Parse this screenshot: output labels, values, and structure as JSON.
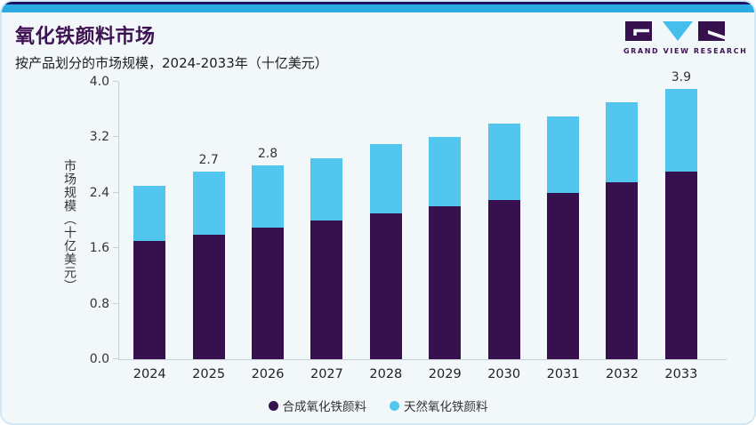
{
  "header": {
    "title": "氧化铁颜料市场",
    "subtitle": "按产品划分的市场规模，2024-2033年（十亿美元）"
  },
  "logo": {
    "text": "GRAND VIEW RESEARCH"
  },
  "colors": {
    "background": "#F2F7FA",
    "accent_bar": "#2AACE3",
    "accent_bar_top": "#1B1464",
    "brand_purple": "#3E1253",
    "synthetic_purple": "#36114D",
    "natural_blue": "#53C6F0"
  },
  "chart_data": {
    "type": "bar",
    "stacked": true,
    "title": "氧化铁颜料市场",
    "subtitle": "按产品划分的市场规模，2024-2033年（十亿美元）",
    "xlabel": "",
    "ylabel": "市场规模（十亿美元）",
    "ylim": [
      0,
      4.0
    ],
    "yticks": [
      "0.0",
      "0.8",
      "1.6",
      "2.4",
      "3.2",
      "4.0"
    ],
    "grid": false,
    "legend_position": "bottom",
    "categories": [
      "2024",
      "2025",
      "2026",
      "2027",
      "2028",
      "2029",
      "2030",
      "2031",
      "2032",
      "2033"
    ],
    "series": [
      {
        "name": "合成氧化铁颜料",
        "color": "#36114D",
        "values": [
          1.7,
          1.8,
          1.9,
          2.0,
          2.1,
          2.2,
          2.3,
          2.4,
          2.55,
          2.7
        ]
      },
      {
        "name": "天然氧化铁颜料",
        "color": "#53C6F0",
        "values": [
          0.8,
          0.9,
          0.9,
          0.9,
          1.0,
          1.0,
          1.1,
          1.1,
          1.15,
          1.2
        ]
      }
    ],
    "totals": [
      2.5,
      2.7,
      2.8,
      2.9,
      3.1,
      3.2,
      3.4,
      3.5,
      3.7,
      3.9
    ],
    "data_labels": [
      "",
      "2.7",
      "2.8",
      "",
      "",
      "",
      "",
      "",
      "",
      "3.9"
    ]
  },
  "legend": {
    "items": [
      {
        "label": "合成氧化铁颜料",
        "color": "#36114D"
      },
      {
        "label": "天然氧化铁颜料",
        "color": "#53C6F0"
      }
    ]
  }
}
